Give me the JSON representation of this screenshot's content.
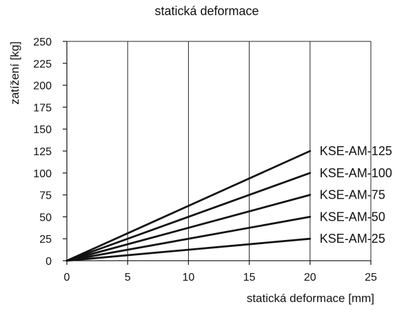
{
  "chart_data": {
    "type": "line",
    "title": "statická deformace",
    "xlabel": "statická deformace [mm]",
    "ylabel": "zatížení [kg]",
    "xlim": [
      0,
      25
    ],
    "ylim": [
      0,
      250
    ],
    "xticks": [
      0,
      5,
      10,
      15,
      20,
      25
    ],
    "yticks": [
      0,
      25,
      50,
      75,
      100,
      125,
      150,
      175,
      200,
      225,
      250
    ],
    "xticklabels": [
      "0",
      "5",
      "10",
      "15",
      "20",
      "25"
    ],
    "yticklabels": [
      "0",
      "25",
      "50",
      "75",
      "100",
      "125",
      "150",
      "175",
      "200",
      "225",
      "250"
    ],
    "grid": true,
    "series": [
      {
        "name": "KSE-AM-125",
        "x": [
          0,
          20
        ],
        "y": [
          0,
          125
        ]
      },
      {
        "name": "KSE-AM-100",
        "x": [
          0,
          20
        ],
        "y": [
          0,
          100
        ]
      },
      {
        "name": "KSE-AM-75",
        "x": [
          0,
          20
        ],
        "y": [
          0,
          75
        ]
      },
      {
        "name": "KSE-AM-50",
        "x": [
          0,
          20
        ],
        "y": [
          0,
          50
        ]
      },
      {
        "name": "KSE-AM-25",
        "x": [
          0,
          20
        ],
        "y": [
          0,
          25
        ]
      }
    ]
  }
}
